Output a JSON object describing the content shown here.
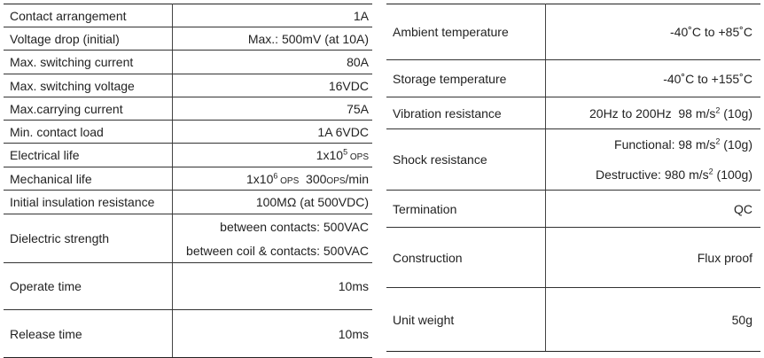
{
  "left_table": [
    {
      "label": "Contact arrangement",
      "value": "1A"
    },
    {
      "label": "Voltage drop (initial)",
      "value": "Max.: 500mV  (at 10A)"
    },
    {
      "label": "Max. switching current",
      "value": "80A"
    },
    {
      "label": "Max. switching voltage",
      "value": "16VDC"
    },
    {
      "label": "Max.carrying current",
      "value": "75A"
    },
    {
      "label": "Min. contact load",
      "value": "1A  6VDC"
    },
    {
      "label": "Electrical life",
      "value_base": "1x10",
      "value_exp": "5",
      "value_unit": " OPS"
    },
    {
      "label": "Mechanical life",
      "value_base": "1x10",
      "value_exp": "6",
      "value_unit": " OPS",
      "value_tail": "  300",
      "value_tail_unit": "OPS",
      "value_tail_end": "/min"
    },
    {
      "label": "Initial insulation resistance",
      "value": "100MΩ (at 500VDC)"
    },
    {
      "label": "Dielectric strength",
      "value_line1": "between contacts: 500VAC",
      "value_line2": "between coil & contacts: 500VAC"
    },
    {
      "label": "Operate time",
      "value": "10ms"
    },
    {
      "label": "Release time",
      "value": "10ms"
    }
  ],
  "right_table": [
    {
      "label": "Ambient temperature",
      "value": "-40˚C to +85˚C"
    },
    {
      "label": "Storage temperature",
      "value": "-40˚C to +155˚C"
    },
    {
      "label": "Vibration resistance",
      "value_a": "20Hz to 200Hz  98 m/s",
      "value_exp": "2",
      "value_b": " (10g)"
    },
    {
      "label": "Shock  resistance",
      "line1_a": "Functional: 98 m/s",
      "line1_exp": "2",
      "line1_b": " (10g)",
      "line2_a": "Destructive: 980 m/s",
      "line2_exp": "2",
      "line2_b": " (100g)"
    },
    {
      "label": "Termination",
      "value": "QC"
    },
    {
      "label": "Construction",
      "value": "Flux proof"
    },
    {
      "label": "Unit weight",
      "value": "50g"
    }
  ]
}
